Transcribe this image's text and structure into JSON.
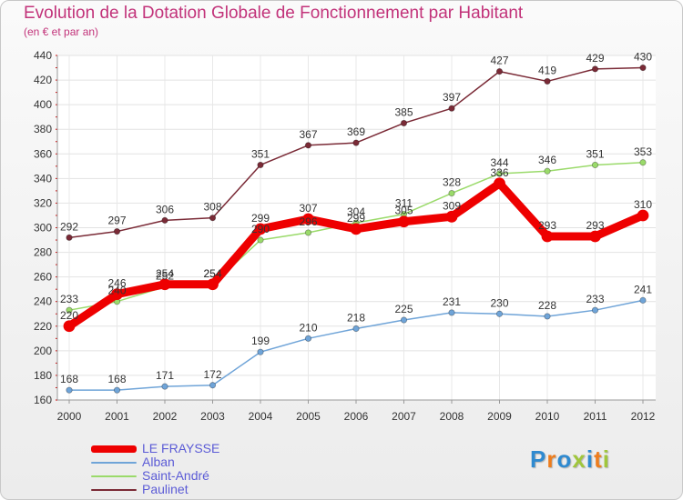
{
  "chart_data": {
    "type": "line",
    "title": "Evolution de la Dotation Globale de Fonctionnement par Habitant",
    "subtitle": "(en € et par an)",
    "xlabel": "",
    "ylabel": "",
    "categories": [
      "2000",
      "2001",
      "2002",
      "2003",
      "2004",
      "2005",
      "2006",
      "2007",
      "2008",
      "2009",
      "2010",
      "2011",
      "2012"
    ],
    "ylim": [
      160,
      440
    ],
    "yticks": [
      160,
      180,
      200,
      220,
      240,
      260,
      280,
      300,
      320,
      340,
      360,
      380,
      400,
      420,
      440
    ],
    "grid": true,
    "legend_position": "bottom-left",
    "series": [
      {
        "name": "Paulinet",
        "color": "#7a2a36",
        "values": [
          292,
          297,
          306,
          308,
          351,
          367,
          369,
          385,
          397,
          427,
          419,
          429,
          430
        ]
      },
      {
        "name": "Saint-André",
        "color": "#9ada6a",
        "values": [
          233,
          240,
          252,
          254,
          290,
          296,
          304,
          311,
          328,
          344,
          346,
          351,
          353
        ]
      },
      {
        "name": "Alban",
        "color": "#6fa4d8",
        "values": [
          168,
          168,
          171,
          172,
          199,
          210,
          218,
          225,
          231,
          230,
          228,
          233,
          241
        ]
      },
      {
        "name": "LE FRAYSSE",
        "color": "#ee0000",
        "values": [
          220,
          246,
          254,
          254,
          299,
          307,
          299,
          305,
          309,
          336,
          293,
          293,
          310
        ]
      }
    ]
  },
  "legend": {
    "items": [
      {
        "label": "LE FRAYSSE",
        "color": "#ee0000"
      },
      {
        "label": "Alban",
        "color": "#6fa4d8"
      },
      {
        "label": "Saint-André",
        "color": "#9ada6a"
      },
      {
        "label": "Paulinet",
        "color": "#7a2a36"
      }
    ]
  },
  "logo": {
    "letters": [
      "P",
      "r",
      "o",
      "x",
      "i",
      "t",
      "i"
    ],
    "colors": [
      "#2f8ad0",
      "#ee7d1d",
      "#2f8ad0",
      "#a0c63c",
      "#2f8ad0",
      "#ee7d1d",
      "#a0c63c"
    ]
  }
}
